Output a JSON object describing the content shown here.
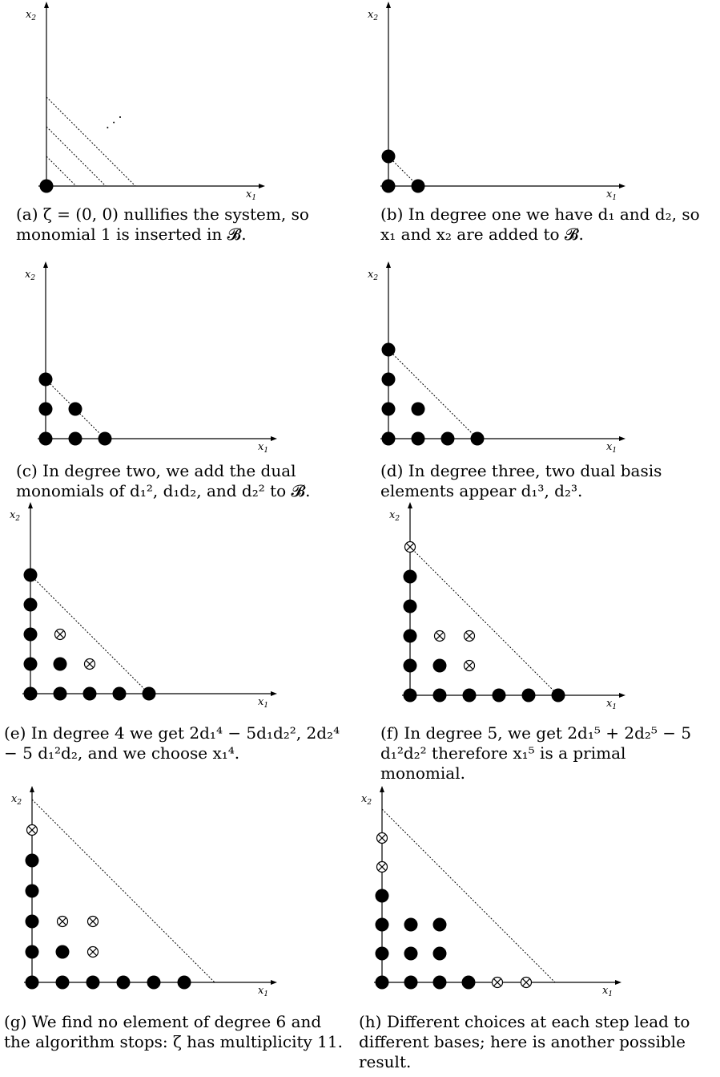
{
  "axes": {
    "x_label": "x",
    "x_sub": "1",
    "y_label": "x",
    "y_sub": "2"
  },
  "panels": [
    {
      "id": "a",
      "caption": "(a) ζ = (0, 0) nullifies the system, so monomial 1 is inserted in 𝓑.",
      "filled": [
        [
          0,
          0
        ]
      ],
      "crossed": [],
      "diagonals": [
        1,
        2,
        3
      ],
      "ellipsis": "· · ·"
    },
    {
      "id": "b",
      "caption": "(b) In degree one we have d₁ and d₂, so x₁ and x₂ are added to 𝓑.",
      "filled": [
        [
          0,
          0
        ],
        [
          1,
          0
        ],
        [
          0,
          1
        ]
      ],
      "crossed": [],
      "diagonals": [
        1
      ]
    },
    {
      "id": "c",
      "caption": "(c) In degree two, we add the dual monomials of d₁², d₁d₂, and d₂² to 𝓑.",
      "filled": [
        [
          0,
          0
        ],
        [
          1,
          0
        ],
        [
          2,
          0
        ],
        [
          0,
          1
        ],
        [
          1,
          1
        ],
        [
          0,
          2
        ]
      ],
      "crossed": [],
      "diagonals": [
        2
      ]
    },
    {
      "id": "d",
      "caption": "(d) In degree three, two dual basis elements appear d₁³, d₂³.",
      "filled": [
        [
          0,
          0
        ],
        [
          1,
          0
        ],
        [
          2,
          0
        ],
        [
          3,
          0
        ],
        [
          0,
          1
        ],
        [
          1,
          1
        ],
        [
          0,
          2
        ],
        [
          0,
          3
        ]
      ],
      "crossed": [],
      "diagonals": [
        3
      ]
    },
    {
      "id": "e",
      "caption": "(e) In degree 4 we get 2d₁⁴ − 5d₁d₂², 2d₂⁴ − 5 d₁²d₂, and we choose x₁⁴.",
      "filled": [
        [
          0,
          0
        ],
        [
          1,
          0
        ],
        [
          2,
          0
        ],
        [
          3,
          0
        ],
        [
          4,
          0
        ],
        [
          0,
          1
        ],
        [
          1,
          1
        ],
        [
          0,
          2
        ],
        [
          0,
          3
        ],
        [
          0,
          4
        ]
      ],
      "crossed": [
        [
          2,
          1
        ],
        [
          1,
          2
        ]
      ],
      "diagonals": [
        4
      ]
    },
    {
      "id": "f",
      "caption": "(f) In degree 5, we get 2d₁⁵ + 2d₂⁵ − 5 d₁²d₂² therefore x₁⁵ is a primal monomial.",
      "filled": [
        [
          0,
          0
        ],
        [
          1,
          0
        ],
        [
          2,
          0
        ],
        [
          3,
          0
        ],
        [
          4,
          0
        ],
        [
          5,
          0
        ],
        [
          0,
          1
        ],
        [
          1,
          1
        ],
        [
          0,
          2
        ],
        [
          0,
          3
        ],
        [
          0,
          4
        ]
      ],
      "crossed": [
        [
          2,
          1
        ],
        [
          1,
          2
        ],
        [
          2,
          2
        ],
        [
          0,
          5
        ]
      ],
      "diagonals": [
        5
      ]
    },
    {
      "id": "g",
      "caption": "(g) We find no element of degree 6 and the algorithm stops: ζ has multiplicity 11.",
      "filled": [
        [
          0,
          0
        ],
        [
          1,
          0
        ],
        [
          2,
          0
        ],
        [
          3,
          0
        ],
        [
          4,
          0
        ],
        [
          5,
          0
        ],
        [
          0,
          1
        ],
        [
          1,
          1
        ],
        [
          0,
          2
        ],
        [
          0,
          3
        ],
        [
          0,
          4
        ]
      ],
      "crossed": [
        [
          2,
          1
        ],
        [
          1,
          2
        ],
        [
          2,
          2
        ],
        [
          0,
          5
        ]
      ],
      "diagonals": [
        6
      ]
    },
    {
      "id": "h",
      "caption": "(h) Different choices at each step lead to different bases; here is another possible result.",
      "filled": [
        [
          0,
          0
        ],
        [
          1,
          0
        ],
        [
          2,
          0
        ],
        [
          3,
          0
        ],
        [
          0,
          1
        ],
        [
          1,
          1
        ],
        [
          2,
          1
        ],
        [
          0,
          2
        ],
        [
          1,
          2
        ],
        [
          2,
          2
        ],
        [
          0,
          3
        ]
      ],
      "crossed": [
        [
          4,
          0
        ],
        [
          5,
          0
        ],
        [
          0,
          4
        ],
        [
          0,
          5
        ]
      ],
      "diagonals": [
        6
      ]
    }
  ]
}
